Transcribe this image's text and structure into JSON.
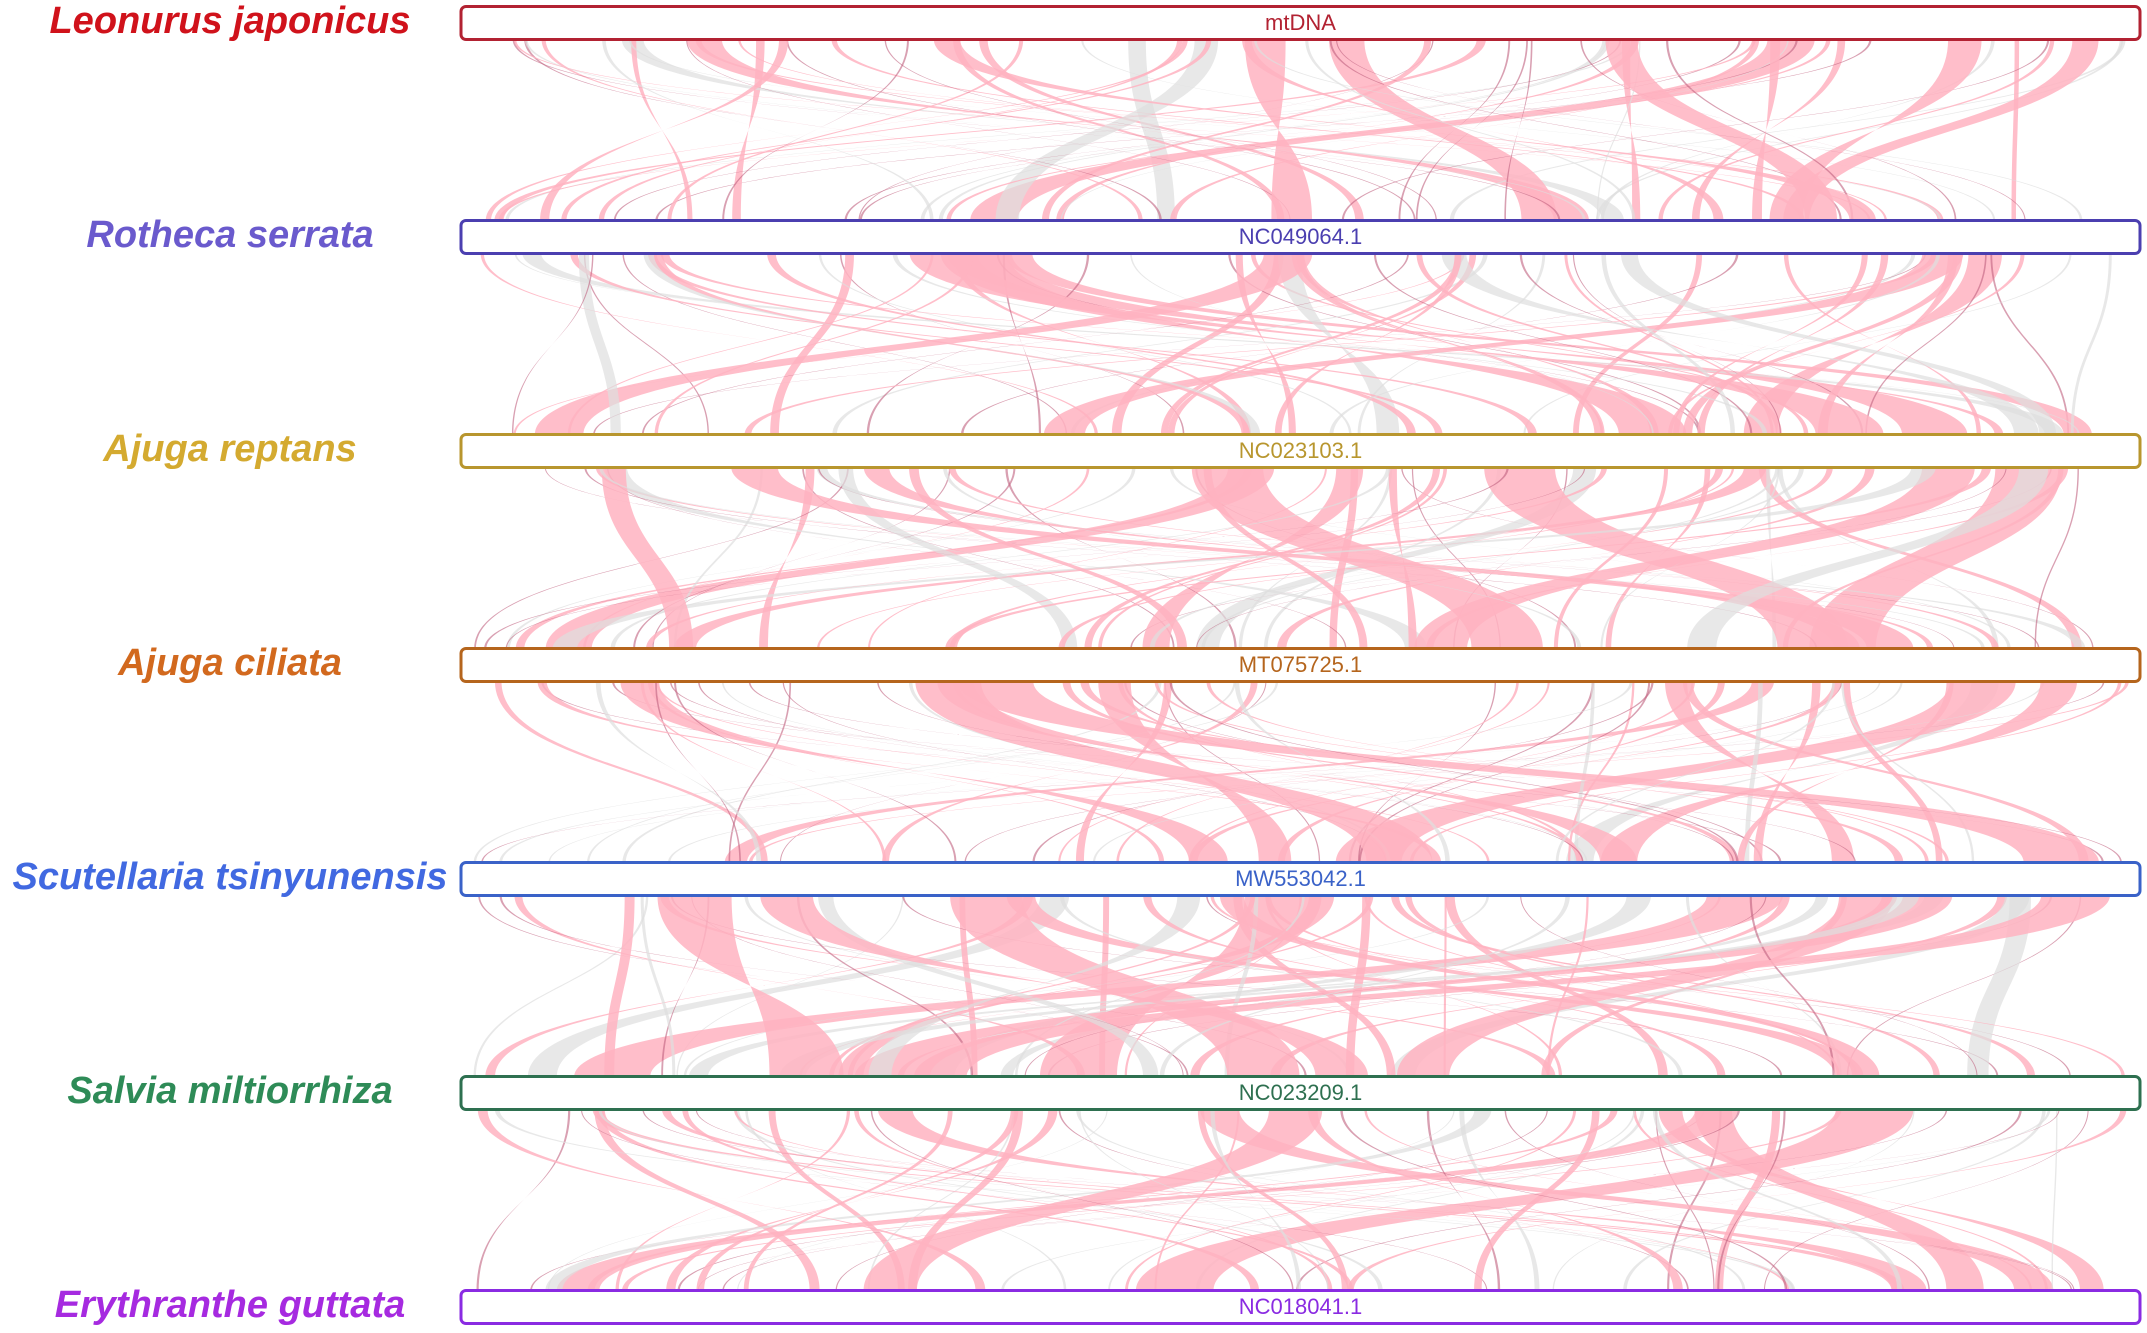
{
  "genomes": [
    {
      "species": "Leonurus japonicus",
      "label": "mtDNA",
      "color": "#d0121b",
      "track_color": "#b22232"
    },
    {
      "species": "Rotheca serrata",
      "label": "NC049064.1",
      "color": "#6a5acd",
      "track_color": "#4b3fb0"
    },
    {
      "species": "Ajuga reptans",
      "label": "NC023103.1",
      "color": "#d4aa30",
      "track_color": "#b8962e"
    },
    {
      "species": "Ajuga ciliata",
      "label": "MT075725.1",
      "color": "#d2691e",
      "track_color": "#b5651d"
    },
    {
      "species": "Scutellaria tsinyunensis",
      "label": "MW553042.1",
      "color": "#4169e1",
      "track_color": "#3a62c8"
    },
    {
      "species": "Salvia miltiorrhiza",
      "label": "NC023209.1",
      "color": "#2e8b57",
      "track_color": "#2e7050"
    },
    {
      "species": "Erythranthe guttata",
      "label": "NC018041.1",
      "color": "#a62ae0",
      "track_color": "#8a2be2"
    }
  ]
}
